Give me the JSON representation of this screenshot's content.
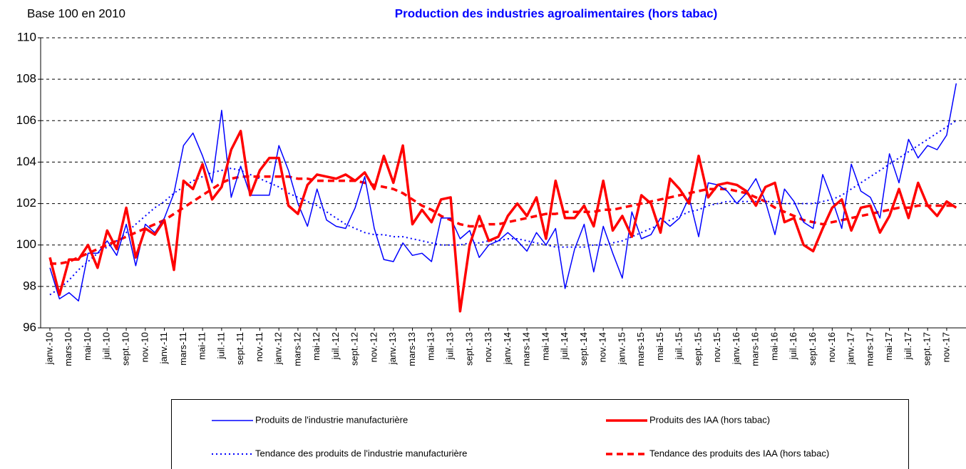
{
  "chart_data": {
    "type": "line",
    "title": "Production des industries agroalimentaires (hors tabac)",
    "y_axis_label": "Base 100 en 2010",
    "categories": [
      "janv.-10",
      null,
      "mars-10",
      null,
      "mai-10",
      null,
      "juil.-10",
      null,
      "sept.-10",
      null,
      "nov.-10",
      null,
      "janv.-11",
      null,
      "mars-11",
      null,
      "mai-11",
      null,
      "juil.-11",
      null,
      "sept.-11",
      null,
      "nov.-11",
      null,
      "janv.-12",
      null,
      "mars-12",
      null,
      "mai-12",
      null,
      "juil.-12",
      null,
      "sept.-12",
      null,
      "nov.-12",
      null,
      "janv.-13",
      null,
      "mars-13",
      null,
      "mai-13",
      null,
      "juil.-13",
      null,
      "sept.-13",
      null,
      "nov.-13",
      null,
      "janv.-14",
      null,
      "mars-14",
      null,
      "mai-14",
      null,
      "juil.-14",
      null,
      "sept.-14",
      null,
      "nov.-14",
      null,
      "janv.-15",
      null,
      "mars-15",
      null,
      "mai-15",
      null,
      "juil.-15",
      null,
      "sept.-15",
      null,
      "nov.-15",
      null,
      "janv.-16",
      null,
      "mars-16",
      null,
      "mai-16",
      null,
      "juil.-16",
      null,
      "sept.-16",
      null,
      "nov.-16",
      null,
      "janv.-17",
      null,
      "mars-17",
      null,
      "mai-17",
      null,
      "juil.-17",
      null,
      "sept.-17",
      null,
      "nov.-17",
      null
    ],
    "series": [
      {
        "name": "Produits de l'industrie manufacturière",
        "color": "#0000ff",
        "line_style": "solid",
        "values": [
          98.9,
          97.4,
          97.7,
          97.3,
          99.6,
          99.6,
          100.2,
          99.5,
          101.0,
          99.0,
          101.0,
          100.6,
          101.3,
          102.5,
          104.8,
          105.4,
          104.3,
          103.0,
          106.5,
          102.3,
          103.8,
          102.4,
          102.4,
          102.4,
          104.8,
          103.6,
          102.0,
          100.9,
          102.7,
          101.2,
          100.9,
          100.8,
          101.8,
          103.3,
          100.8,
          99.3,
          99.2,
          100.1,
          99.5,
          99.6,
          99.2,
          101.3,
          101.3,
          100.3,
          100.7,
          99.4,
          100.0,
          100.2,
          100.6,
          100.2,
          99.7,
          100.6,
          100.0,
          100.8,
          97.9,
          99.8,
          101.0,
          98.7,
          100.9,
          99.6,
          98.4,
          101.6,
          100.3,
          100.5,
          101.3,
          100.9,
          101.3,
          102.3,
          100.4,
          103.0,
          102.9,
          102.6,
          102.0,
          102.5,
          103.2,
          102.1,
          100.5,
          102.7,
          102.1,
          101.1,
          100.8,
          103.4,
          102.2,
          100.8,
          103.9,
          102.6,
          102.3,
          101.3,
          104.4,
          103.0,
          105.1,
          104.2,
          104.8,
          104.6,
          105.3,
          107.8
        ]
      },
      {
        "name": "Produits des IAA (hors tabac)",
        "color": "#ff0000",
        "line_style": "solid",
        "values": [
          99.4,
          97.6,
          99.3,
          99.3,
          100.0,
          98.9,
          100.7,
          99.8,
          101.8,
          99.4,
          100.8,
          100.5,
          101.2,
          98.8,
          103.1,
          102.7,
          103.9,
          102.2,
          102.8,
          104.6,
          105.5,
          102.4,
          103.6,
          104.2,
          104.2,
          101.9,
          101.5,
          102.9,
          103.4,
          103.3,
          103.2,
          103.4,
          103.1,
          103.5,
          102.7,
          104.3,
          103.0,
          104.8,
          101.0,
          101.7,
          101.1,
          102.2,
          102.3,
          96.8,
          100.0,
          101.4,
          100.2,
          100.4,
          101.4,
          102.0,
          101.4,
          102.3,
          100.3,
          103.1,
          101.3,
          101.3,
          101.9,
          100.9,
          103.1,
          100.7,
          101.4,
          100.4,
          102.4,
          102.0,
          100.6,
          103.2,
          102.7,
          102.0,
          104.3,
          102.3,
          102.9,
          103.0,
          102.9,
          102.6,
          101.9,
          102.8,
          103.0,
          101.1,
          101.3,
          100.0,
          99.7,
          100.8,
          101.8,
          102.2,
          100.7,
          101.8,
          101.9,
          100.6,
          101.4,
          102.7,
          101.3,
          103.0,
          101.9,
          101.4,
          102.1,
          101.8
        ]
      },
      {
        "name": "Tendance des produits de l'industrie manufacturière",
        "color": "#0000ff",
        "line_style": "dotted",
        "values": [
          97.6,
          97.9,
          98.3,
          98.8,
          99.2,
          99.6,
          99.9,
          100.2,
          100.6,
          101.0,
          101.4,
          101.8,
          102.1,
          102.5,
          102.8,
          103.1,
          103.3,
          103.5,
          103.6,
          103.7,
          103.6,
          103.4,
          103.2,
          103.0,
          102.8,
          102.5,
          102.3,
          102.1,
          101.9,
          101.6,
          101.3,
          101.0,
          100.8,
          100.6,
          100.5,
          100.5,
          100.4,
          100.4,
          100.3,
          100.2,
          100.1,
          100.0,
          100.0,
          100.0,
          100.1,
          100.1,
          100.2,
          100.2,
          100.3,
          100.3,
          100.2,
          100.1,
          100.0,
          99.9,
          99.9,
          99.9,
          99.9,
          100.0,
          100.0,
          100.1,
          100.2,
          100.4,
          100.6,
          100.8,
          101.0,
          101.2,
          101.4,
          101.6,
          101.7,
          101.9,
          102.0,
          102.1,
          102.1,
          102.1,
          102.1,
          102.1,
          102.1,
          102.0,
          102.0,
          102.0,
          102.0,
          102.1,
          102.2,
          102.4,
          102.7,
          103.0,
          103.3,
          103.6,
          103.9,
          104.2,
          104.5,
          104.8,
          105.1,
          105.4,
          105.7,
          106.0
        ]
      },
      {
        "name": "Tendance des produits des IAA (hors tabac)",
        "color": "#ff0000",
        "line_style": "dashed",
        "values": [
          99.1,
          99.1,
          99.2,
          99.4,
          99.6,
          99.8,
          100.0,
          100.2,
          100.4,
          100.6,
          100.8,
          101.0,
          101.2,
          101.5,
          101.8,
          102.1,
          102.4,
          102.7,
          103.0,
          103.2,
          103.3,
          103.3,
          103.3,
          103.3,
          103.3,
          103.3,
          103.2,
          103.2,
          103.1,
          103.1,
          103.1,
          103.1,
          103.1,
          103.0,
          102.9,
          102.8,
          102.7,
          102.5,
          102.2,
          101.9,
          101.7,
          101.4,
          101.2,
          101.0,
          100.9,
          100.9,
          101.0,
          101.0,
          101.1,
          101.2,
          101.3,
          101.4,
          101.5,
          101.5,
          101.6,
          101.6,
          101.6,
          101.6,
          101.7,
          101.7,
          101.8,
          101.9,
          102.0,
          102.1,
          102.2,
          102.3,
          102.4,
          102.5,
          102.6,
          102.7,
          102.7,
          102.7,
          102.6,
          102.5,
          102.3,
          102.1,
          101.8,
          101.6,
          101.4,
          101.2,
          101.1,
          101.0,
          101.1,
          101.2,
          101.3,
          101.4,
          101.5,
          101.6,
          101.7,
          101.8,
          101.8,
          101.9,
          101.9,
          101.9,
          101.9,
          101.9
        ]
      }
    ],
    "ylim": [
      96,
      110
    ],
    "yticks": [
      96,
      98,
      100,
      102,
      104,
      106,
      108,
      110
    ],
    "grid": true
  }
}
